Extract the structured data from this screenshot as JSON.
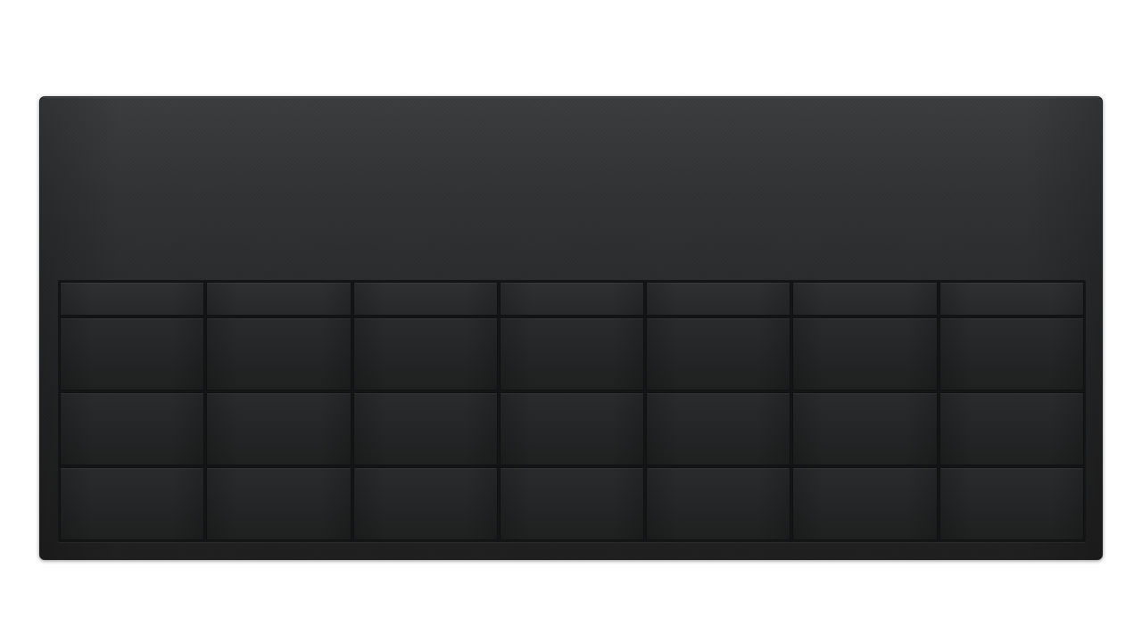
{
  "calendar": {
    "title": "",
    "weekdays": [
      "",
      "",
      "",
      "",
      "",
      "",
      ""
    ],
    "weeks": [
      [
        "",
        "",
        "",
        "",
        "",
        "",
        ""
      ],
      [
        "",
        "",
        "",
        "",
        "",
        "",
        ""
      ],
      [
        "",
        "",
        "",
        "",
        "",
        "",
        ""
      ]
    ]
  },
  "colors": {
    "panel_top": "#3b3d3f",
    "panel_bottom": "#1f1f20",
    "cell": "#252627",
    "grid_line": "#141516"
  }
}
